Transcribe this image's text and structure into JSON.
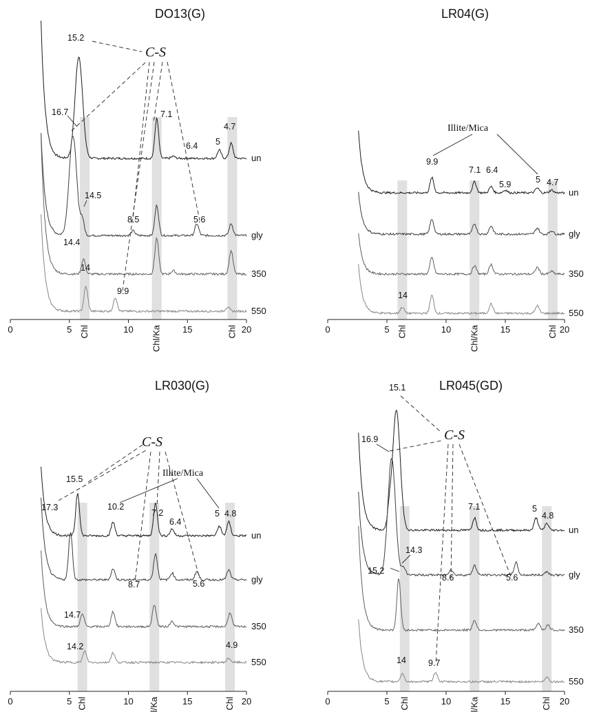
{
  "colors": {
    "un": "#1a1a1a",
    "gly": "#3c3c3c",
    "350": "#5e5e5e",
    "550": "#858585",
    "band": "#d6d6d6"
  },
  "chart_data": [
    {
      "type": "line",
      "title": "DO13(G)",
      "xlim": [
        0,
        20
      ],
      "xticks": [
        "0",
        "5",
        "10",
        "15",
        "20"
      ],
      "band_labels": [
        {
          "text": "Chl",
          "x": 6.3
        },
        {
          "text": "Chl/Ka",
          "x": 12.4
        },
        {
          "text": "Chl",
          "x": 18.8
        }
      ],
      "series": [
        {
          "name": "un",
          "peaks": [
            {
              "x": 5.8,
              "h": 148
            },
            {
              "x": 12.4,
              "h": 58
            },
            {
              "x": 17.7,
              "h": 12
            },
            {
              "x": 18.7,
              "h": 22
            },
            {
              "x": 13.8,
              "h": 3
            }
          ],
          "start": 200
        },
        {
          "name": "gly",
          "peaks": [
            {
              "x": 5.3,
              "h": 145
            },
            {
              "x": 6.1,
              "h": 22
            },
            {
              "x": 10.4,
              "h": 7
            },
            {
              "x": 12.4,
              "h": 44
            },
            {
              "x": 15.8,
              "h": 17
            },
            {
              "x": 18.7,
              "h": 17
            }
          ],
          "start": 150
        },
        {
          "name": "350",
          "peaks": [
            {
              "x": 6.2,
              "h": 22
            },
            {
              "x": 12.4,
              "h": 52
            },
            {
              "x": 13.8,
              "h": 5
            },
            {
              "x": 18.7,
              "h": 34
            }
          ],
          "start": 200
        },
        {
          "name": "550",
          "peaks": [
            {
              "x": 6.4,
              "h": 36
            },
            {
              "x": 8.9,
              "h": 20
            },
            {
              "x": 18.4,
              "h": 6
            }
          ],
          "start": 140
        }
      ],
      "labels": [
        "15.2",
        "16.7",
        "7.1",
        "6.4",
        "5",
        "4.7",
        "14.5",
        "8.5",
        "5.6",
        "14.4",
        "14",
        "9.9"
      ],
      "annotations": [
        "C-S"
      ]
    },
    {
      "type": "line",
      "title": "LR04(G)",
      "xlim": [
        0,
        20
      ],
      "xticks": [
        "0",
        "5",
        "10",
        "15",
        "20"
      ],
      "band_labels": [
        {
          "text": "Chl",
          "x": 6.3
        },
        {
          "text": "Chl/Ka",
          "x": 12.4
        },
        {
          "text": "Chl",
          "x": 19.0
        }
      ],
      "series": [
        {
          "name": "un",
          "peaks": [
            {
              "x": 8.8,
              "h": 22
            },
            {
              "x": 12.4,
              "h": 16
            },
            {
              "x": 13.8,
              "h": 9
            },
            {
              "x": 15.0,
              "h": 4
            },
            {
              "x": 17.7,
              "h": 7
            },
            {
              "x": 18.9,
              "h": 4
            }
          ],
          "start": 90
        },
        {
          "name": "gly",
          "peaks": [
            {
              "x": 8.8,
              "h": 22
            },
            {
              "x": 12.4,
              "h": 15
            },
            {
              "x": 13.8,
              "h": 12
            },
            {
              "x": 17.7,
              "h": 9
            },
            {
              "x": 18.9,
              "h": 5
            }
          ],
          "start": 60
        },
        {
          "name": "350",
          "peaks": [
            {
              "x": 8.8,
              "h": 24
            },
            {
              "x": 12.4,
              "h": 12
            },
            {
              "x": 13.8,
              "h": 14
            },
            {
              "x": 17.7,
              "h": 10
            },
            {
              "x": 18.9,
              "h": 4
            }
          ],
          "start": 60
        },
        {
          "name": "550",
          "peaks": [
            {
              "x": 6.3,
              "h": 9
            },
            {
              "x": 8.8,
              "h": 26
            },
            {
              "x": 13.8,
              "h": 14
            },
            {
              "x": 17.7,
              "h": 11
            }
          ],
          "start": 70
        }
      ],
      "labels": [
        "9.9",
        "7.1",
        "6.4",
        "5.9",
        "5",
        "4.7",
        "14"
      ],
      "annotations": [
        "Illite/Mica"
      ]
    },
    {
      "type": "line",
      "title": "LR030(G)",
      "xlim": [
        0,
        20
      ],
      "xticks": [
        "0",
        "5",
        "10",
        "15",
        "20"
      ],
      "band_labels": [
        {
          "text": "Chl",
          "x": 6.1
        },
        {
          "text": "Chl/Ka",
          "x": 12.2
        },
        {
          "text": "Chl",
          "x": 18.6
        }
      ],
      "series": [
        {
          "name": "un",
          "peaks": [
            {
              "x": 5.7,
              "h": 62
            },
            {
              "x": 8.7,
              "h": 20
            },
            {
              "x": 12.3,
              "h": 48
            },
            {
              "x": 13.7,
              "h": 10
            },
            {
              "x": 17.7,
              "h": 14
            },
            {
              "x": 18.5,
              "h": 20
            }
          ],
          "start": 100
        },
        {
          "name": "gly",
          "peaks": [
            {
              "x": 5.1,
              "h": 70
            },
            {
              "x": 8.7,
              "h": 16
            },
            {
              "x": 12.3,
              "h": 38
            },
            {
              "x": 13.7,
              "h": 10
            },
            {
              "x": 15.8,
              "h": 12
            },
            {
              "x": 18.5,
              "h": 14
            }
          ],
          "start": 120
        },
        {
          "name": "350",
          "peaks": [
            {
              "x": 6.1,
              "h": 18
            },
            {
              "x": 8.7,
              "h": 22
            },
            {
              "x": 12.2,
              "h": 32
            },
            {
              "x": 13.7,
              "h": 8
            },
            {
              "x": 18.6,
              "h": 20
            }
          ],
          "start": 110
        },
        {
          "name": "550",
          "peaks": [
            {
              "x": 6.3,
              "h": 16
            },
            {
              "x": 8.7,
              "h": 14
            },
            {
              "x": 18.5,
              "h": 6
            }
          ],
          "start": 80
        }
      ],
      "labels": [
        "15.5",
        "17.3",
        "10.2",
        "7.2",
        "6.4",
        "5",
        "4.8",
        "8.7",
        "5.6",
        "14.7",
        "14.2",
        "4.9"
      ],
      "annotations": [
        "C-S",
        "Illite/Mica"
      ]
    },
    {
      "type": "line",
      "title": "LR045(GD)",
      "xlim": [
        0,
        20
      ],
      "xticks": [
        "0",
        "5",
        "10",
        "15",
        "20"
      ],
      "band_labels": [
        {
          "text": "Chl",
          "x": 6.5
        },
        {
          "text": "Chl/Ka",
          "x": 12.4
        },
        {
          "text": "Chl",
          "x": 18.5
        }
      ],
      "series": [
        {
          "name": "un",
          "peaks": [
            {
              "x": 5.8,
              "h": 175
            },
            {
              "x": 5.2,
              "h": 22
            },
            {
              "x": 12.4,
              "h": 18
            },
            {
              "x": 17.6,
              "h": 18
            },
            {
              "x": 18.5,
              "h": 10
            }
          ],
          "start": 140
        },
        {
          "name": "gly",
          "peaks": [
            {
              "x": 5.4,
              "h": 170
            },
            {
              "x": 6.4,
              "h": 12
            },
            {
              "x": 10.4,
              "h": 8
            },
            {
              "x": 12.4,
              "h": 14
            },
            {
              "x": 15.9,
              "h": 18
            },
            {
              "x": 18.5,
              "h": 5
            }
          ],
          "start": 120
        },
        {
          "name": "350",
          "peaks": [
            {
              "x": 6.0,
              "h": 75
            },
            {
              "x": 12.4,
              "h": 14
            },
            {
              "x": 17.8,
              "h": 10
            },
            {
              "x": 18.6,
              "h": 7
            }
          ],
          "start": 150
        },
        {
          "name": "550",
          "peaks": [
            {
              "x": 6.3,
              "h": 12
            },
            {
              "x": 9.1,
              "h": 14
            },
            {
              "x": 18.5,
              "h": 7
            }
          ],
          "start": 90
        }
      ],
      "labels": [
        "15.1",
        "16.9",
        "7.1",
        "5",
        "4.8",
        "14.3",
        "8.6",
        "5.6",
        "15.2",
        "14",
        "9.7"
      ],
      "annotations": [
        "C-S"
      ]
    }
  ]
}
